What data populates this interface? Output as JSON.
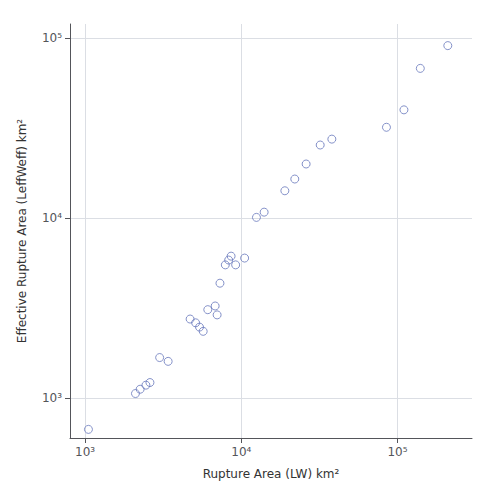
{
  "chart_data": {
    "type": "scatter",
    "xlabel": "Rupture Area (LW) km²",
    "ylabel": "Effective Rupture Area (LeffWeff) km²",
    "x": [
      1050,
      2100,
      2250,
      2450,
      2600,
      3000,
      3400,
      4700,
      5100,
      5400,
      5700,
      6100,
      6800,
      7000,
      7300,
      7900,
      8300,
      8600,
      9200,
      10500,
      12500,
      14000,
      19000,
      22000,
      26000,
      32000,
      38000,
      85000,
      110000,
      140000,
      210000
    ],
    "y": [
      670,
      1060,
      1120,
      1180,
      1220,
      1680,
      1600,
      2750,
      2620,
      2480,
      2350,
      3100,
      3250,
      2900,
      4350,
      5500,
      5850,
      6150,
      5500,
      6000,
      10100,
      10800,
      14200,
      16500,
      20000,
      25500,
      27500,
      32000,
      40000,
      68000,
      91000
    ],
    "color": "#6677bb",
    "marker": "circle",
    "log": true,
    "xlim": [
      800,
      300000
    ],
    "ylim": [
      600,
      120000
    ],
    "xticks": [
      {
        "value": 1000,
        "label": "10³"
      },
      {
        "value": 10000,
        "label": "10⁴"
      },
      {
        "value": 100000,
        "label": "10⁵"
      }
    ],
    "yticks": [
      {
        "value": 1000,
        "label": "10³"
      },
      {
        "value": 10000,
        "label": "10⁴"
      },
      {
        "value": 100000,
        "label": "10⁵"
      }
    ],
    "grid": true
  }
}
